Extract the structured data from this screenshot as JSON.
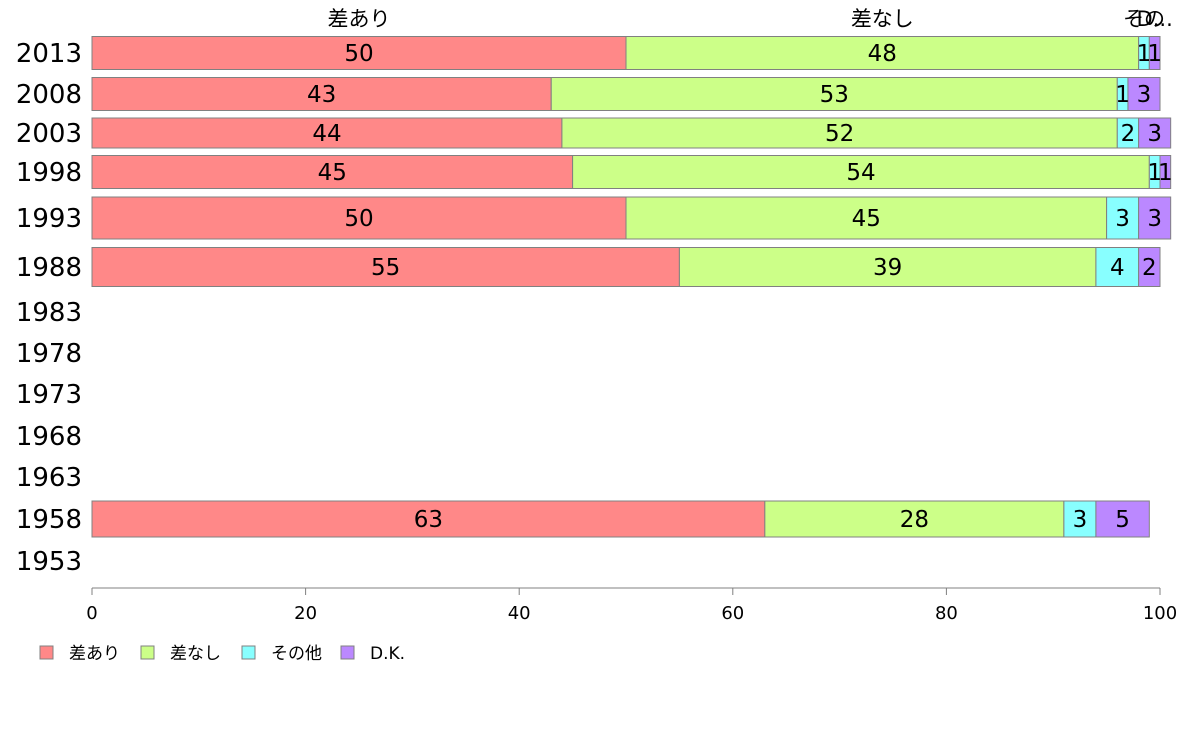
{
  "chart_data": {
    "type": "bar",
    "orientation": "horizontal",
    "stacked": true,
    "categories": [
      "2013",
      "2008",
      "2003",
      "1998",
      "1993",
      "1988",
      "1983",
      "1978",
      "1973",
      "1968",
      "1963",
      "1958",
      "1953"
    ],
    "series": [
      {
        "name": "差あり",
        "color": "#ff8888",
        "values": [
          50,
          43,
          44,
          45,
          50,
          55,
          null,
          null,
          null,
          null,
          null,
          63,
          null
        ]
      },
      {
        "name": "差なし",
        "color": "#ccff88",
        "values": [
          48,
          53,
          52,
          54,
          45,
          39,
          null,
          null,
          null,
          null,
          null,
          28,
          null
        ]
      },
      {
        "name": "その他",
        "color": "#88ffff",
        "values": [
          1,
          1,
          2,
          1,
          3,
          4,
          null,
          null,
          null,
          null,
          null,
          3,
          null
        ]
      },
      {
        "name": "D.K.",
        "color": "#bb88ff",
        "values": [
          1,
          3,
          3,
          1,
          3,
          2,
          null,
          null,
          null,
          null,
          null,
          5,
          null
        ]
      }
    ],
    "top_labels": [
      "差あり",
      "差なし",
      "その",
      "D..."
    ],
    "xlim": [
      0,
      100
    ],
    "xticks": [
      0,
      20,
      40,
      60,
      80,
      100
    ],
    "legend_position": "bottom-left",
    "grid": false
  }
}
